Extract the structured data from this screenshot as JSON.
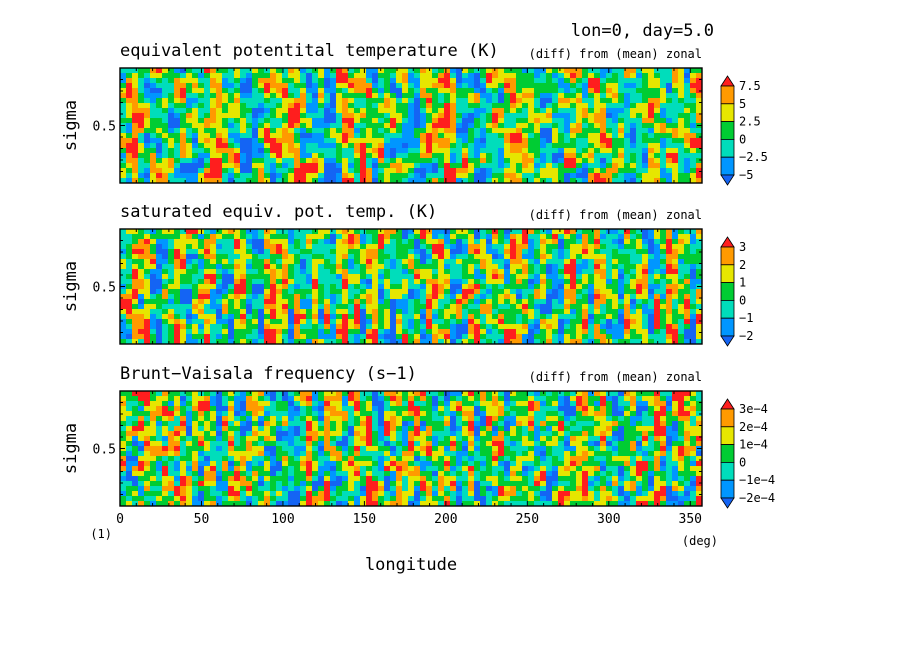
{
  "header": {
    "label": "lon=0, day=5.0"
  },
  "figure_number": "(1)",
  "colors": {
    "palette": [
      "#1464f4",
      "#0096ff",
      "#00ddbb",
      "#00cc33",
      "#e6e600",
      "#ff9a00",
      "#ff1e1e"
    ]
  },
  "chart_data": [
    {
      "type": "heatmap",
      "title": "equivalent potentital temperature (K)",
      "subtitle": "(diff) from (mean) zonal",
      "xlabel": "longitude",
      "xunit": "(deg)",
      "ylabel": "sigma",
      "xlim": [
        0,
        357.2
      ],
      "ylim": [
        1,
        0
      ],
      "x_ticks": [
        0,
        50,
        100,
        150,
        200,
        250,
        300,
        350
      ],
      "y_ticks": [
        0.5
      ],
      "y_tick_labels": [
        "0.5"
      ],
      "colorbar": {
        "levels": [
          -5,
          -2.5,
          0,
          2.5,
          5,
          7.5
        ],
        "labels": [
          "7.5",
          "5",
          "2.5",
          "0",
          "−2.5",
          "−5"
        ]
      },
      "seed": 11,
      "noise_scale": 1.0
    },
    {
      "type": "heatmap",
      "title": "saturated equiv. pot. temp. (K)",
      "subtitle": "(diff) from (mean) zonal",
      "xlabel": "longitude",
      "ylabel": "sigma",
      "xlim": [
        0,
        357.2
      ],
      "ylim": [
        1,
        0
      ],
      "x_ticks": [
        0,
        50,
        100,
        150,
        200,
        250,
        300,
        350
      ],
      "y_ticks": [
        0.5
      ],
      "y_tick_labels": [
        "0.5"
      ],
      "colorbar": {
        "levels": [
          -2,
          -1,
          0,
          1,
          2,
          3
        ],
        "labels": [
          "3",
          "2",
          "1",
          "0",
          "−1",
          "−2"
        ]
      },
      "seed": 29,
      "noise_scale": 1.0
    },
    {
      "type": "heatmap",
      "title": "Brunt−Vaisala frequency (s−1)",
      "subtitle": "(diff) from (mean) zonal",
      "xlabel": "longitude",
      "ylabel": "sigma",
      "xlim": [
        0,
        357.2
      ],
      "ylim": [
        1,
        0
      ],
      "x_ticks": [
        0,
        50,
        100,
        150,
        200,
        250,
        300,
        350
      ],
      "x_tick_labels": [
        "0",
        "50",
        "100",
        "150",
        "200",
        "250",
        "300",
        "350"
      ],
      "y_ticks": [
        0.5
      ],
      "y_tick_labels": [
        "0.5"
      ],
      "colorbar": {
        "levels": [
          -0.0002,
          -0.0001,
          0,
          0.0001,
          0.0002,
          0.0003
        ],
        "labels": [
          "3e−4",
          "2e−4",
          "1e−4",
          "0",
          "−1e−4",
          "−2e−4"
        ]
      },
      "seed": 47,
      "noise_scale": 1.0
    }
  ]
}
